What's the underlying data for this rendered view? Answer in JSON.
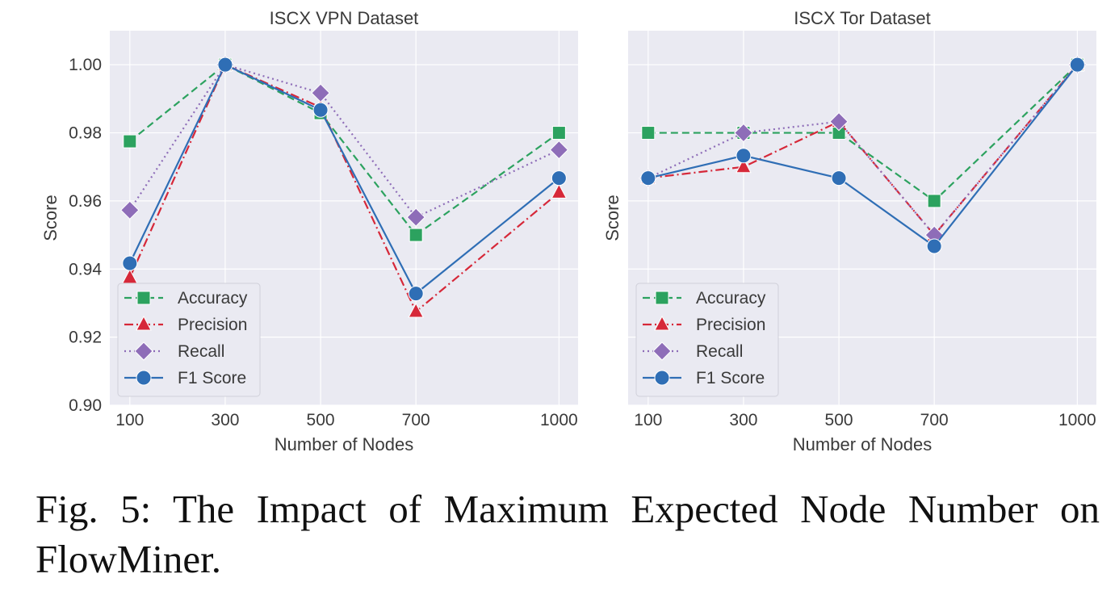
{
  "caption": "Fig. 5: The Impact of Maximum Expected Node Number on FlowMiner.",
  "colors": {
    "plot_bg": "#EAEAF2",
    "grid": "#FFFFFF",
    "text": "#3a3a3a",
    "accuracy": "#2CA25F",
    "precision": "#D62839",
    "recall": "#8E6DB8",
    "f1": "#2F6EB5"
  },
  "chart_data": [
    {
      "type": "line",
      "title": "ISCX VPN Dataset",
      "xlabel": "Number of Nodes",
      "ylabel": "Score",
      "x": [
        100,
        300,
        500,
        700,
        1000
      ],
      "x_tick_labels": [
        "100",
        "300",
        "500",
        "700",
        "1000"
      ],
      "xlim": [
        58,
        1040
      ],
      "ylim": [
        0.9,
        1.01
      ],
      "y_ticks": [
        0.9,
        0.92,
        0.94,
        0.96,
        0.98,
        1.0
      ],
      "y_tick_labels": [
        "0.90",
        "0.92",
        "0.94",
        "0.96",
        "0.98",
        "1.00"
      ],
      "grid": true,
      "legend": "lower-left",
      "series": [
        {
          "name": "Accuracy",
          "key": "accuracy",
          "marker": "square",
          "linestyle": "dashed",
          "values": [
            0.9775,
            1.0,
            0.9858,
            0.95,
            0.98
          ]
        },
        {
          "name": "Precision",
          "key": "precision",
          "marker": "triangle",
          "linestyle": "dashdot",
          "values": [
            0.9375,
            1.0,
            0.9875,
            0.9275,
            0.9625
          ]
        },
        {
          "name": "Recall",
          "key": "recall",
          "marker": "diamond",
          "linestyle": "dotted",
          "values": [
            0.9573,
            1.0,
            0.9917,
            0.9552,
            0.975
          ]
        },
        {
          "name": "F1 Score",
          "key": "f1",
          "marker": "circle",
          "linestyle": "solid",
          "values": [
            0.9417,
            1.0,
            0.9867,
            0.9328,
            0.9667
          ]
        }
      ]
    },
    {
      "type": "line",
      "title": "ISCX Tor Dataset",
      "xlabel": "Number of Nodes",
      "ylabel": "Score",
      "x": [
        100,
        300,
        500,
        700,
        1000
      ],
      "x_tick_labels": [
        "100",
        "300",
        "500",
        "700",
        "1000"
      ],
      "xlim": [
        58,
        1040
      ],
      "ylim": [
        0.9,
        1.01
      ],
      "y_ticks": [
        0.9,
        0.92,
        0.94,
        0.96,
        0.98,
        1.0
      ],
      "y_tick_labels": [],
      "grid": true,
      "legend": "lower-left",
      "series": [
        {
          "name": "Accuracy",
          "key": "accuracy",
          "marker": "square",
          "linestyle": "dashed",
          "values": [
            0.98,
            0.98,
            0.98,
            0.96,
            1.0
          ]
        },
        {
          "name": "Precision",
          "key": "precision",
          "marker": "triangle",
          "linestyle": "dashdot",
          "values": [
            0.9667,
            0.97,
            0.9833,
            0.95,
            1.0
          ]
        },
        {
          "name": "Recall",
          "key": "recall",
          "marker": "diamond",
          "linestyle": "dotted",
          "values": [
            0.9667,
            0.98,
            0.9833,
            0.95,
            1.0
          ]
        },
        {
          "name": "F1 Score",
          "key": "f1",
          "marker": "circle",
          "linestyle": "solid",
          "values": [
            0.9667,
            0.9733,
            0.9667,
            0.9467,
            1.0
          ]
        }
      ]
    }
  ]
}
